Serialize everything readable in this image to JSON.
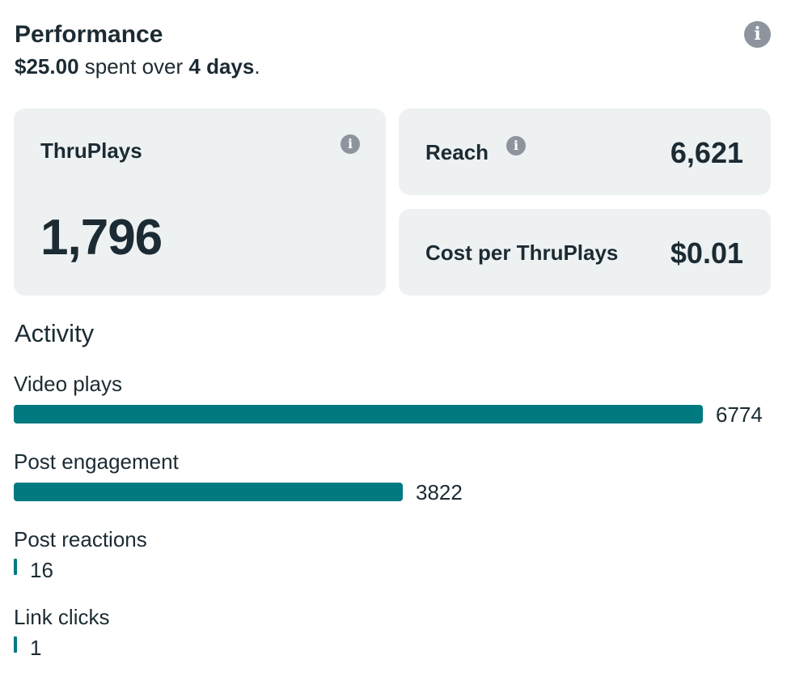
{
  "header": {
    "title": "Performance",
    "spend_amount": "$25.00",
    "spend_text": " spent over ",
    "duration": "4 days",
    "period_end": "."
  },
  "cards": {
    "thruplays": {
      "label": "ThruPlays",
      "value": "1,796"
    },
    "reach": {
      "label": "Reach",
      "value": "6,621"
    },
    "cost": {
      "label": "Cost per ThruPlays",
      "value": "$0.01"
    }
  },
  "activity": {
    "title": "Activity",
    "max": 6774,
    "items": [
      {
        "label": "Video plays",
        "value": 6774
      },
      {
        "label": "Post engagement",
        "value": 3822
      },
      {
        "label": "Post reactions",
        "value": 16
      },
      {
        "label": "Link clicks",
        "value": 1
      }
    ]
  },
  "colors": {
    "bar": "#007a80",
    "card_bg": "#edf1f2",
    "text": "#1c2b33",
    "icon": "#8d949e"
  },
  "icons": {
    "header_info": "info-icon",
    "thruplays_info": "info-icon",
    "reach_info": "info-icon"
  }
}
